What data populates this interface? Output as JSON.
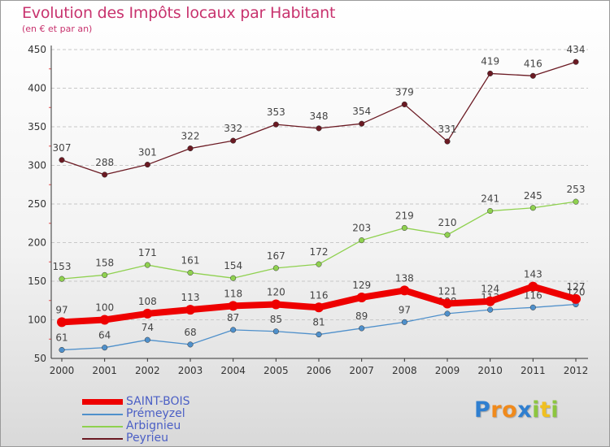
{
  "chart_data": {
    "type": "line",
    "title": "Evolution des Impôts locaux par Habitant",
    "subtitle": "(en € et par an)",
    "xlabel": "",
    "ylabel": "",
    "categories": [
      "2000",
      "2001",
      "2002",
      "2003",
      "2004",
      "2005",
      "2006",
      "2007",
      "2008",
      "2009",
      "2010",
      "2011",
      "2012"
    ],
    "ylim": [
      50,
      450
    ],
    "yticks": [
      50,
      100,
      150,
      200,
      250,
      300,
      350,
      400,
      450
    ],
    "grid": "horizontal dashed",
    "legend": "bottom-left",
    "series": [
      {
        "name": "Peyrieu",
        "color": "#6b1a23",
        "values": [
          307,
          288,
          301,
          322,
          332,
          353,
          348,
          354,
          379,
          331,
          419,
          416,
          434
        ]
      },
      {
        "name": "Arbignieu",
        "color": "#8fd14f",
        "values": [
          153,
          158,
          171,
          161,
          154,
          167,
          172,
          203,
          219,
          210,
          241,
          245,
          253
        ]
      },
      {
        "name": "Prémeyzel",
        "color": "#4f90cb",
        "values": [
          61,
          64,
          74,
          68,
          87,
          85,
          81,
          89,
          97,
          108,
          113,
          116,
          120
        ]
      },
      {
        "name": "SAINT-BOIS",
        "color": "#ee0000",
        "values": [
          97,
          100,
          108,
          113,
          118,
          120,
          116,
          129,
          138,
          121,
          124,
          143,
          127
        ]
      }
    ]
  },
  "legend_items": [
    {
      "label": "SAINT-BOIS",
      "color": "#ee0000"
    },
    {
      "label": "Prémeyzel",
      "color": "#4f90cb"
    },
    {
      "label": "Arbignieu",
      "color": "#8fd14f"
    },
    {
      "label": "Peyrieu",
      "color": "#6b1a23"
    }
  ],
  "logo": {
    "letters": [
      "P",
      "r",
      "o",
      "x",
      "i",
      "t",
      "i"
    ],
    "colors": [
      "#2f7fd0",
      "#f08a1c",
      "#f08a1c",
      "#2f7fd0",
      "#8cc63f",
      "#f0c020",
      "#8cc63f"
    ]
  }
}
